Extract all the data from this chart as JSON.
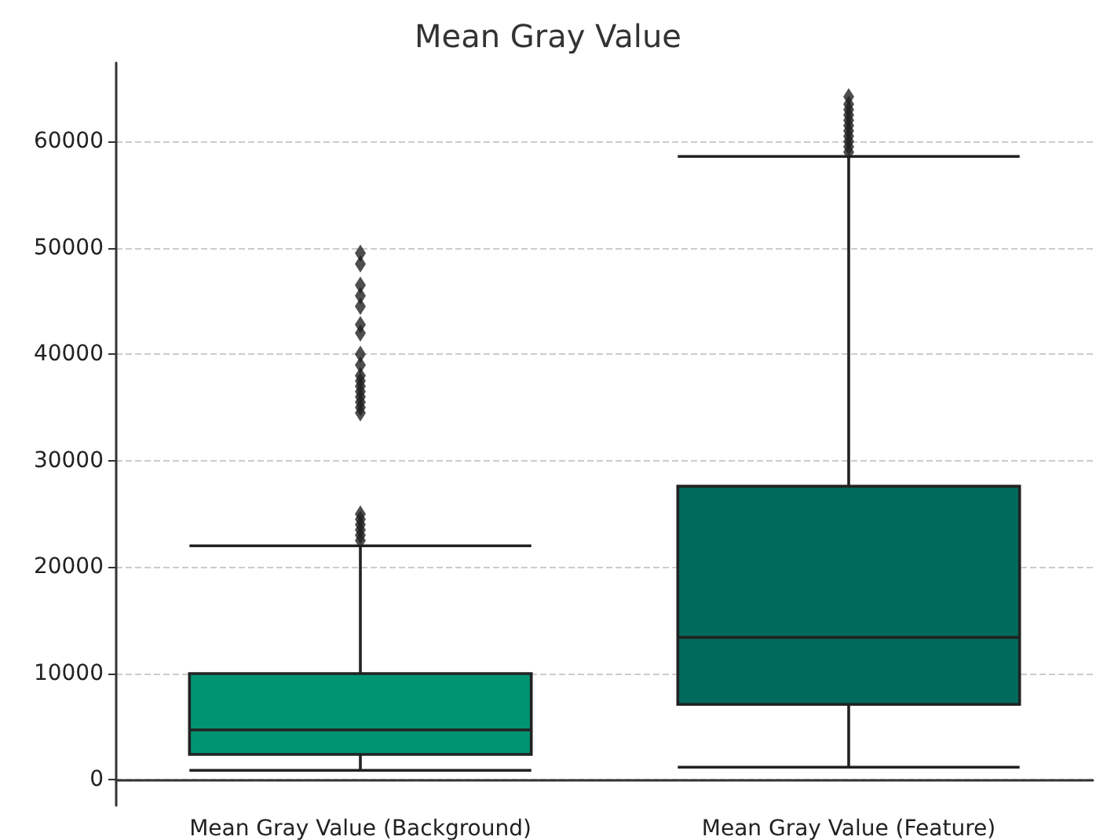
{
  "chart_data": {
    "type": "box",
    "title": "Mean Gray Value",
    "categories": [
      "Mean Gray Value (Background)",
      "Mean Gray Value (Feature)"
    ],
    "colors": [
      "#009472",
      "#006b5c"
    ],
    "boxes": [
      {
        "low": 900,
        "q1": 2400,
        "median": 4700,
        "q3": 10000,
        "high": 22000,
        "outliers": [
          22500,
          23000,
          23500,
          24000,
          24500,
          25000,
          34500,
          35000,
          35500,
          36000,
          36500,
          37000,
          37500,
          38000,
          39000,
          40000,
          42000,
          42800,
          44500,
          45500,
          46500,
          48500,
          49500
        ]
      },
      {
        "low": 1200,
        "q1": 7100,
        "median": 13400,
        "q3": 27600,
        "high": 58600,
        "outliers": [
          59000,
          59500,
          60000,
          60500,
          61000,
          61500,
          62000,
          62500,
          63000,
          63500,
          64200
        ]
      }
    ],
    "ylim": [
      -2400,
      67400
    ],
    "yticks": [
      0,
      10000,
      20000,
      30000,
      40000,
      50000,
      60000
    ],
    "grid": "y",
    "marker": "diamond"
  }
}
